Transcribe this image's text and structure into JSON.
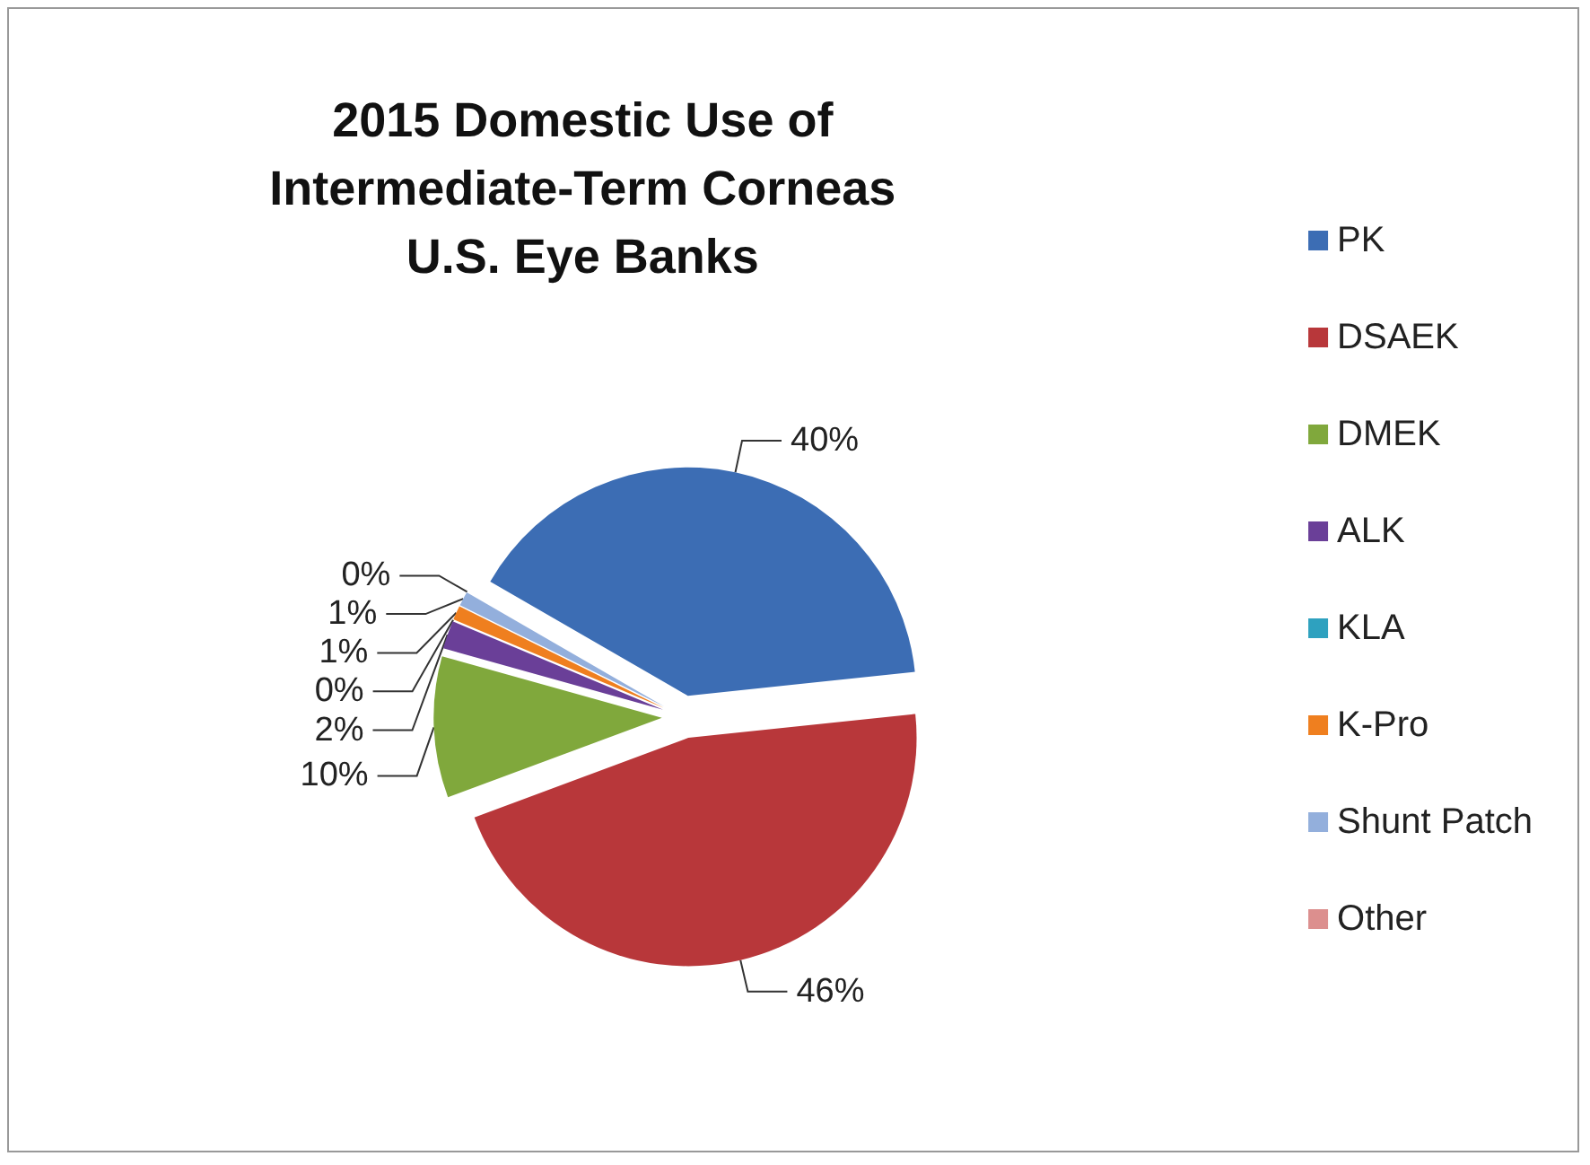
{
  "chart_data": {
    "type": "pie",
    "title": "2015 Domestic Use of\nIntermediate-Term Corneas\nU.S. Eye Banks",
    "categories": [
      "PK",
      "DSAEK",
      "DMEK",
      "ALK",
      "KLA",
      "K-Pro",
      "Shunt Patch",
      "Other"
    ],
    "values": [
      40,
      46,
      10,
      2,
      0,
      1,
      1,
      0
    ],
    "colors": [
      "#3c6db4",
      "#b8373a",
      "#80a83c",
      "#6a3f98",
      "#2ea1bf",
      "#ef7f1f",
      "#93afdc",
      "#dc8f8e"
    ],
    "value_labels": [
      "40%",
      "46%",
      "10%",
      "2%",
      "0%",
      "1%",
      "1%",
      "0%"
    ],
    "legend": "right"
  }
}
